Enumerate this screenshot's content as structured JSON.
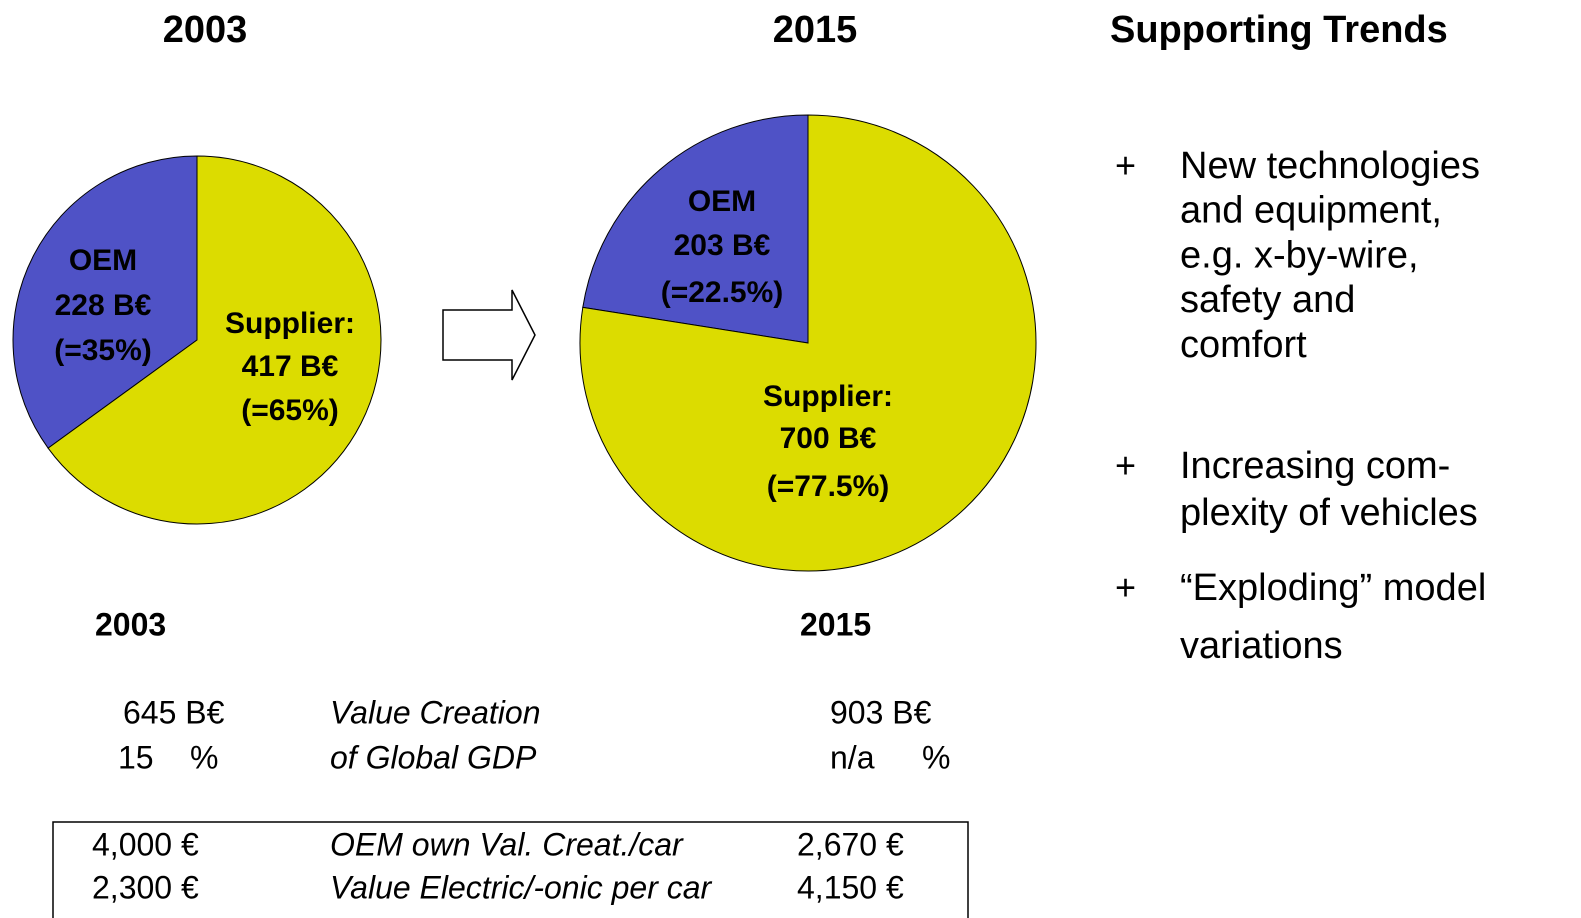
{
  "chart_data": [
    {
      "type": "pie",
      "title": "2003",
      "categories": [
        "OEM",
        "Supplier:"
      ],
      "values": [
        35,
        65
      ],
      "value_labels": [
        "(=35%)",
        "(=65%)"
      ],
      "amount_labels": [
        "228 B€",
        "417 B€"
      ],
      "colors": [
        "#4f52c6",
        "#dcdc00"
      ]
    },
    {
      "type": "pie",
      "title": "2015",
      "categories": [
        "OEM",
        "Supplier:"
      ],
      "values": [
        22.5,
        77.5
      ],
      "value_labels": [
        "(=22.5%)",
        "(=77.5%)"
      ],
      "amount_labels": [
        "203 B€",
        "700 B€"
      ],
      "colors": [
        "#4f52c6",
        "#dcdc00"
      ]
    }
  ],
  "trends": {
    "title": "Supporting Trends",
    "marker": "+",
    "items": [
      [
        "New technologies",
        "and equipment,",
        "e.g. x-by-wire,",
        "safety and",
        "comfort"
      ],
      [
        "Increasing com-",
        "plexity of vehicles"
      ],
      [
        "“Exploding” model",
        "variations"
      ]
    ]
  },
  "table": {
    "header": [
      "2003",
      "2015"
    ],
    "rows": [
      [
        "645 B€",
        "Value Creation",
        "903 B€"
      ],
      [
        "15",
        "%",
        "of Global GDP",
        "n/a",
        "%"
      ]
    ],
    "boxed_rows": [
      [
        "4,000 €",
        "OEM own Val. Creat./car",
        "2,670 €"
      ],
      [
        "2,300 €",
        "Value Electric/-onic per car",
        "4,150 €"
      ]
    ]
  }
}
